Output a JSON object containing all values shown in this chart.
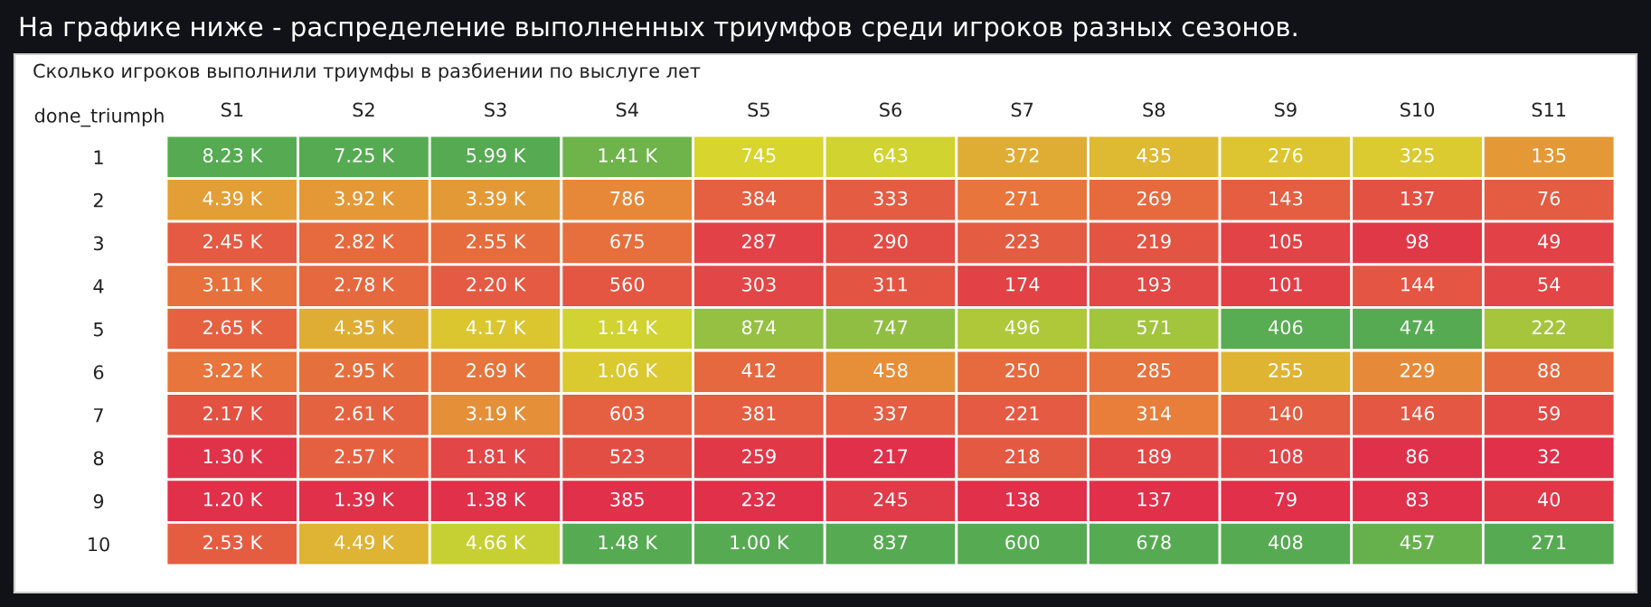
{
  "chart_data": {
    "type": "heatmap",
    "title": "На графике ниже - распределение выполненных триумфов среди игроков разных сезонов.",
    "subtitle": "Сколько игроков выполнили триумфы в разбиении по выслуге лет",
    "ylabel": "done_triumph",
    "categories": [
      "S1",
      "S2",
      "S3",
      "S4",
      "S5",
      "S6",
      "S7",
      "S8",
      "S9",
      "S10",
      "S11"
    ],
    "y_categories": [
      "1",
      "2",
      "3",
      "4",
      "5",
      "6",
      "7",
      "8",
      "9",
      "10"
    ],
    "cells": [
      [
        8230,
        7250,
        5990,
        1410,
        745,
        643,
        372,
        435,
        276,
        325,
        135
      ],
      [
        4390,
        3920,
        3390,
        786,
        384,
        333,
        271,
        269,
        143,
        137,
        76
      ],
      [
        2450,
        2820,
        2550,
        675,
        287,
        290,
        223,
        219,
        105,
        98,
        49
      ],
      [
        3110,
        2780,
        2200,
        560,
        303,
        311,
        174,
        193,
        101,
        144,
        54
      ],
      [
        2650,
        4350,
        4170,
        1140,
        874,
        747,
        496,
        571,
        406,
        474,
        222
      ],
      [
        3220,
        2950,
        2690,
        1060,
        412,
        458,
        250,
        285,
        255,
        229,
        88
      ],
      [
        2170,
        2610,
        3190,
        603,
        381,
        337,
        221,
        314,
        140,
        146,
        59
      ],
      [
        1300,
        2570,
        1810,
        523,
        259,
        217,
        218,
        189,
        108,
        86,
        32
      ],
      [
        1200,
        1390,
        1380,
        385,
        232,
        245,
        138,
        137,
        79,
        83,
        40
      ],
      [
        2530,
        4490,
        4660,
        1480,
        1000,
        837,
        600,
        678,
        408,
        457,
        271
      ]
    ],
    "cell_labels": [
      [
        "8.23 K",
        "7.25 K",
        "5.99 K",
        "1.41 K",
        "745",
        "643",
        "372",
        "435",
        "276",
        "325",
        "135"
      ],
      [
        "4.39 K",
        "3.92 K",
        "3.39 K",
        "786",
        "384",
        "333",
        "271",
        "269",
        "143",
        "137",
        "76"
      ],
      [
        "2.45 K",
        "2.82 K",
        "2.55 K",
        "675",
        "287",
        "290",
        "223",
        "219",
        "105",
        "98",
        "49"
      ],
      [
        "3.11 K",
        "2.78 K",
        "2.20 K",
        "560",
        "303",
        "311",
        "174",
        "193",
        "101",
        "144",
        "54"
      ],
      [
        "2.65 K",
        "4.35 K",
        "4.17 K",
        "1.14 K",
        "874",
        "747",
        "496",
        "571",
        "406",
        "474",
        "222"
      ],
      [
        "3.22 K",
        "2.95 K",
        "2.69 K",
        "1.06 K",
        "412",
        "458",
        "250",
        "285",
        "255",
        "229",
        "88"
      ],
      [
        "2.17 K",
        "2.61 K",
        "3.19 K",
        "603",
        "381",
        "337",
        "221",
        "314",
        "140",
        "146",
        "59"
      ],
      [
        "1.30 K",
        "2.57 K",
        "1.81 K",
        "523",
        "259",
        "217",
        "218",
        "189",
        "108",
        "86",
        "32"
      ],
      [
        "1.20 K",
        "1.39 K",
        "1.38 K",
        "385",
        "232",
        "245",
        "138",
        "137",
        "79",
        "83",
        "40"
      ],
      [
        "2.53 K",
        "4.49 K",
        "4.66 K",
        "1.48 K",
        "1.00 K",
        "837",
        "600",
        "678",
        "408",
        "457",
        "271"
      ]
    ]
  }
}
